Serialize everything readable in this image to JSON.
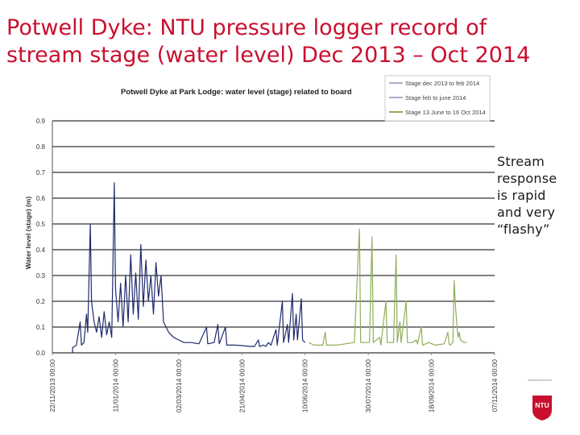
{
  "slide": {
    "title_line1": "Potwell Dyke: NTU pressure logger record of",
    "title_line2": "stream stage (water level) Dec 2013 – Oct 2014",
    "callout_lines": [
      "Stream",
      "response",
      "is rapid",
      "and very",
      "“flashy”"
    ],
    "logo_text": "NTU",
    "colors": {
      "title": "#c8102e",
      "logo": "#c8102e"
    }
  },
  "chart_data": {
    "type": "line",
    "title": "Potwell Dyke at Park Lodge: water level (stage) related to board",
    "ylabel": "Water level (stage)  (m)",
    "ylim": [
      0,
      0.9
    ],
    "y_tick_labels": [
      "0.0",
      "0.1",
      "0.2",
      "0.3",
      "0.4",
      "0.5",
      "0.6",
      "0.7",
      "0.8",
      "0.9"
    ],
    "x_tick_labels": [
      "22/11/2013 00:00",
      "11/01/2014 00:00",
      "02/03/2014 00:00",
      "21/04/2014 00:00",
      "10/06/2014 00:00",
      "30/07/2014 00:00",
      "18/09/2014 00:00",
      "07/11/2014 00:00"
    ],
    "xlim": [
      "2013-11-22",
      "2014-11-07"
    ],
    "grid": "horizontal",
    "legend_position": "top-right",
    "series": [
      {
        "name": "Stage dec 2013 to feb 2014",
        "color": "#1f2a6b",
        "points": [
          [
            "2013-12-08",
            0.0
          ],
          [
            "2013-12-08",
            0.02
          ],
          [
            "2013-12-11",
            0.03
          ],
          [
            "2013-12-14",
            0.12
          ],
          [
            "2013-12-15",
            0.03
          ],
          [
            "2013-12-17",
            0.04
          ],
          [
            "2013-12-19",
            0.15
          ],
          [
            "2013-12-20",
            0.08
          ],
          [
            "2013-12-22",
            0.5
          ],
          [
            "2013-12-23",
            0.2
          ],
          [
            "2013-12-25",
            0.12
          ],
          [
            "2013-12-27",
            0.08
          ],
          [
            "2013-12-29",
            0.14
          ],
          [
            "2013-12-31",
            0.06
          ],
          [
            "2014-01-02",
            0.16
          ],
          [
            "2014-01-04",
            0.07
          ],
          [
            "2014-01-06",
            0.12
          ],
          [
            "2014-01-08",
            0.06
          ],
          [
            "2014-01-10",
            0.66
          ],
          [
            "2014-01-11",
            0.25
          ],
          [
            "2014-01-13",
            0.12
          ],
          [
            "2014-01-15",
            0.27
          ],
          [
            "2014-01-17",
            0.1
          ],
          [
            "2014-01-19",
            0.3
          ],
          [
            "2014-01-21",
            0.12
          ],
          [
            "2014-01-23",
            0.38
          ],
          [
            "2014-01-25",
            0.15
          ],
          [
            "2014-01-27",
            0.31
          ],
          [
            "2014-01-29",
            0.13
          ],
          [
            "2014-01-31",
            0.42
          ],
          [
            "2014-02-02",
            0.18
          ],
          [
            "2014-02-04",
            0.36
          ],
          [
            "2014-02-06",
            0.2
          ],
          [
            "2014-02-08",
            0.3
          ],
          [
            "2014-02-10",
            0.15
          ],
          [
            "2014-02-12",
            0.35
          ],
          [
            "2014-02-14",
            0.22
          ],
          [
            "2014-02-16",
            0.3
          ],
          [
            "2014-02-18",
            0.12
          ],
          [
            "2014-02-22",
            0.08
          ]
        ]
      },
      {
        "name": "Stage feb to june 2014",
        "color": "#1f2a6b",
        "points": [
          [
            "2014-02-22",
            0.08
          ],
          [
            "2014-02-26",
            0.06
          ],
          [
            "2014-03-02",
            0.05
          ],
          [
            "2014-03-06",
            0.04
          ],
          [
            "2014-03-12",
            0.04
          ],
          [
            "2014-03-18",
            0.035
          ],
          [
            "2014-03-24",
            0.1
          ],
          [
            "2014-03-25",
            0.035
          ],
          [
            "2014-03-30",
            0.04
          ],
          [
            "2014-04-02",
            0.11
          ],
          [
            "2014-04-03",
            0.035
          ],
          [
            "2014-04-08",
            0.1
          ],
          [
            "2014-04-09",
            0.03
          ],
          [
            "2014-04-15",
            0.03
          ],
          [
            "2014-04-21",
            0.028
          ],
          [
            "2014-04-27",
            0.025
          ],
          [
            "2014-05-01",
            0.025
          ],
          [
            "2014-05-04",
            0.05
          ],
          [
            "2014-05-05",
            0.025
          ],
          [
            "2014-05-08",
            0.03
          ],
          [
            "2014-05-10",
            0.025
          ],
          [
            "2014-05-12",
            0.04
          ],
          [
            "2014-05-14",
            0.03
          ],
          [
            "2014-05-18",
            0.09
          ],
          [
            "2014-05-19",
            0.03
          ],
          [
            "2014-05-23",
            0.2
          ],
          [
            "2014-05-24",
            0.04
          ],
          [
            "2014-05-27",
            0.11
          ],
          [
            "2014-05-28",
            0.04
          ],
          [
            "2014-05-31",
            0.23
          ],
          [
            "2014-06-01",
            0.05
          ],
          [
            "2014-06-03",
            0.15
          ],
          [
            "2014-06-04",
            0.05
          ],
          [
            "2014-06-07",
            0.21
          ],
          [
            "2014-06-08",
            0.05
          ],
          [
            "2014-06-10",
            0.04
          ]
        ]
      },
      {
        "name": "Stage 13 June to 16 Oct 2014",
        "color": "#8fae5a",
        "points": [
          [
            "2014-06-13",
            0.04
          ],
          [
            "2014-06-17",
            0.03
          ],
          [
            "2014-06-24",
            0.03
          ],
          [
            "2014-06-26",
            0.08
          ],
          [
            "2014-06-27",
            0.03
          ],
          [
            "2014-07-05",
            0.03
          ],
          [
            "2014-07-12",
            0.035
          ],
          [
            "2014-07-19",
            0.04
          ],
          [
            "2014-07-23",
            0.48
          ],
          [
            "2014-07-24",
            0.04
          ],
          [
            "2014-07-31",
            0.04
          ],
          [
            "2014-08-02",
            0.45
          ],
          [
            "2014-08-03",
            0.04
          ],
          [
            "2014-08-08",
            0.06
          ],
          [
            "2014-08-09",
            0.03
          ],
          [
            "2014-08-13",
            0.2
          ],
          [
            "2014-08-14",
            0.04
          ],
          [
            "2014-08-19",
            0.04
          ],
          [
            "2014-08-21",
            0.38
          ],
          [
            "2014-08-22",
            0.04
          ],
          [
            "2014-08-24",
            0.12
          ],
          [
            "2014-08-25",
            0.04
          ],
          [
            "2014-08-29",
            0.2
          ],
          [
            "2014-08-30",
            0.04
          ],
          [
            "2014-09-03",
            0.04
          ],
          [
            "2014-09-06",
            0.05
          ],
          [
            "2014-09-07",
            0.035
          ],
          [
            "2014-09-10",
            0.1
          ],
          [
            "2014-09-11",
            0.03
          ],
          [
            "2014-09-16",
            0.04
          ],
          [
            "2014-09-21",
            0.03
          ],
          [
            "2014-09-28",
            0.035
          ],
          [
            "2014-10-01",
            0.08
          ],
          [
            "2014-10-02",
            0.035
          ],
          [
            "2014-10-03",
            0.03
          ],
          [
            "2014-10-05",
            0.04
          ],
          [
            "2014-10-06",
            0.28
          ],
          [
            "2014-10-07",
            0.18
          ],
          [
            "2014-10-08",
            0.12
          ],
          [
            "2014-10-09",
            0.06
          ],
          [
            "2014-10-10",
            0.08
          ],
          [
            "2014-10-11",
            0.05
          ],
          [
            "2014-10-14",
            0.04
          ],
          [
            "2014-10-16",
            0.04
          ]
        ]
      }
    ]
  }
}
